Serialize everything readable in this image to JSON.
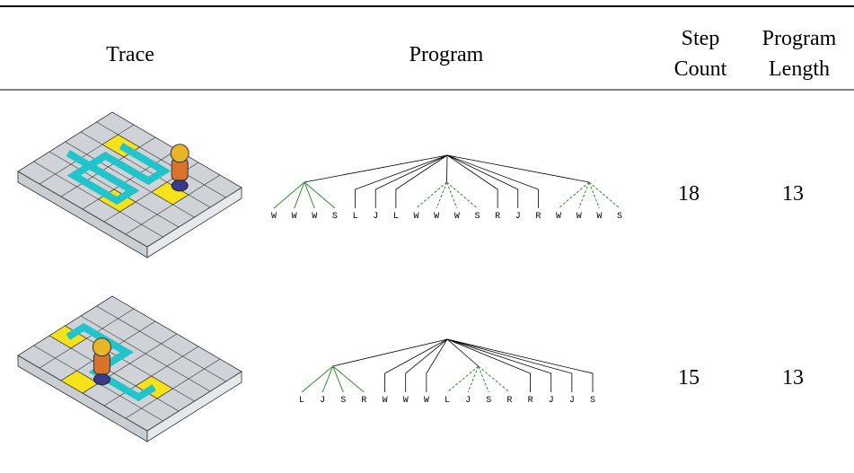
{
  "table": {
    "header": [
      "Trace",
      "Program",
      [
        "Step",
        "Count"
      ],
      [
        "Program",
        "Length"
      ]
    ],
    "rows": [
      {
        "program": [
          {
            "style": "solid",
            "leaves": [
              "W",
              "W",
              "W",
              "S"
            ]
          },
          "L",
          "J",
          "L",
          {
            "style": "dashed",
            "leaves": [
              "W",
              "W",
              "W",
              "S"
            ]
          },
          "R",
          "J",
          "R",
          {
            "style": "dashed",
            "leaves": [
              "W",
              "W",
              "W",
              "S"
            ]
          }
        ],
        "step_count": "18",
        "program_length": "13"
      },
      {
        "program": [
          {
            "style": "solid",
            "leaves": [
              "L",
              "J",
              "S",
              "R"
            ]
          },
          "W",
          "W",
          "W",
          {
            "style": "dashed",
            "leaves": [
              "L",
              "J",
              "S",
              "R"
            ]
          },
          "R",
          "J",
          "J",
          "S"
        ],
        "step_count": "15",
        "program_length": "13"
      }
    ]
  }
}
